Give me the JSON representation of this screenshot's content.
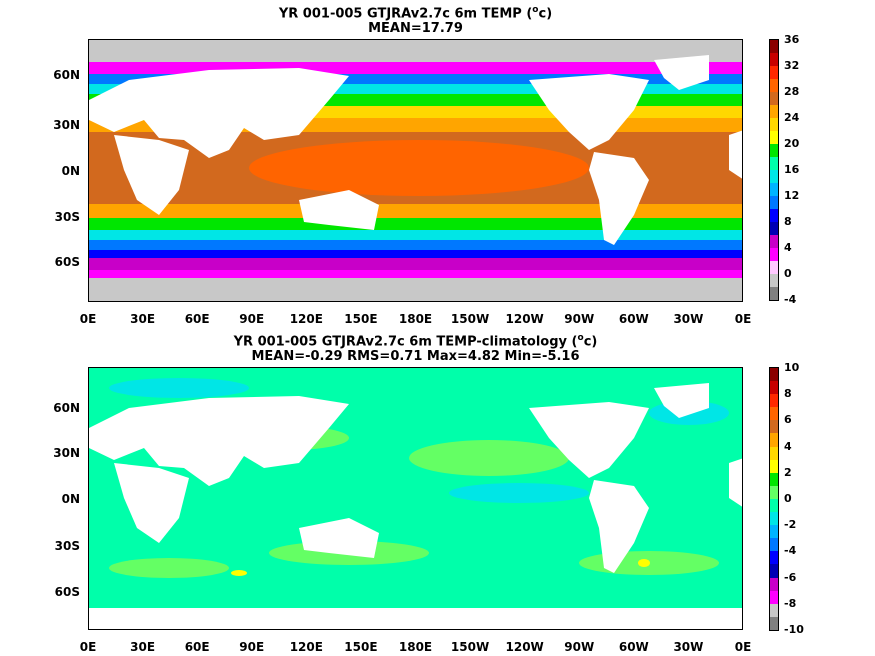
{
  "panels": [
    {
      "title_line1": "YR 001-005 GTJRAv2.7c 6m TEMP (",
      "title_unit_sup": "o",
      "title_unit_end": "c)",
      "title_line2": "MEAN=17.79",
      "colorbar": {
        "labels": [
          "36",
          "32",
          "28",
          "24",
          "20",
          "16",
          "12",
          "8",
          "4",
          "0",
          "-4"
        ],
        "colors": [
          "#8b0000",
          "#c80000",
          "#ff2800",
          "#ff6400",
          "#d2691e",
          "#ffa500",
          "#ffd700",
          "#ffff00",
          "#00e600",
          "#00ffaa",
          "#00e6e6",
          "#00b4ff",
          "#0078ff",
          "#0000ff",
          "#0000b4",
          "#c800c8",
          "#ff00ff",
          "#ffc8ff",
          "#c8c8c8",
          "#808080"
        ]
      }
    },
    {
      "title_line1": "YR 001-005 GTJRAv2.7c 6m TEMP-climatology (",
      "title_unit_sup": "o",
      "title_unit_end": "c)",
      "title_line2": "MEAN=-0.29   RMS=0.71   Max=4.82   Min=-5.16",
      "colorbar": {
        "labels": [
          "10",
          "8",
          "6",
          "4",
          "2",
          "0",
          "-2",
          "-4",
          "-6",
          "-8",
          "-10"
        ],
        "colors": [
          "#8b0000",
          "#c80000",
          "#ff2800",
          "#ff6400",
          "#d2691e",
          "#ffa500",
          "#ffd700",
          "#ffff00",
          "#00e600",
          "#64ff64",
          "#00ffaa",
          "#00e6e6",
          "#00b4ff",
          "#0078ff",
          "#0000ff",
          "#0000b4",
          "#c800c8",
          "#ff00ff",
          "#c8c8c8",
          "#808080"
        ]
      }
    }
  ],
  "lat_labels": [
    "60N",
    "30N",
    "0N",
    "30S",
    "60S"
  ],
  "lon_labels": [
    "0E",
    "30E",
    "60E",
    "90E",
    "120E",
    "150E",
    "180E",
    "150W",
    "120W",
    "90W",
    "60W",
    "30W",
    "0E"
  ],
  "colors": {
    "land": "#ffffff",
    "missing": "#c8c8c8"
  }
}
